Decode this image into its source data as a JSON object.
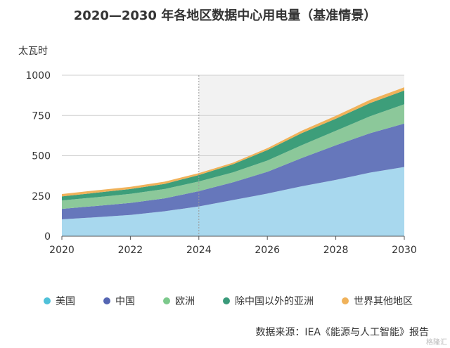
{
  "chart_data": {
    "type": "area",
    "title": "2020—2030 年各地区数据中心用电量（基准情景）",
    "ylabel": "太瓦时",
    "xlabel": "",
    "x": [
      2020,
      2021,
      2022,
      2023,
      2024,
      2025,
      2026,
      2027,
      2028,
      2029,
      2030
    ],
    "x_ticks": [
      "2020",
      "2022",
      "2024",
      "2026",
      "2028",
      "2030"
    ],
    "y_ticks": [
      "0",
      "250",
      "500",
      "750",
      "1000"
    ],
    "ylim": [
      0,
      1000
    ],
    "xlim": [
      2020,
      2030
    ],
    "grid": true,
    "stacked": true,
    "series": [
      {
        "name": "美国",
        "color": "#a8d8ee",
        "values": [
          105,
          118,
          132,
          155,
          185,
          225,
          265,
          310,
          350,
          395,
          430
        ]
      },
      {
        "name": "中国",
        "color": "#6677bb",
        "values": [
          65,
          70,
          75,
          80,
          95,
          110,
          135,
          175,
          215,
          245,
          270
        ]
      },
      {
        "name": "欧洲",
        "color": "#8cc89a",
        "values": [
          52,
          54,
          56,
          58,
          60,
          62,
          70,
          80,
          90,
          105,
          120
        ]
      },
      {
        "name": "除中国以外的亚洲",
        "color": "#3d9e7a",
        "values": [
          25,
          28,
          30,
          32,
          40,
          50,
          65,
          75,
          75,
          82,
          85
        ]
      },
      {
        "name": "世界其他地区",
        "color": "#f0b25a",
        "values": [
          15,
          15,
          14,
          14,
          12,
          10,
          12,
          15,
          18,
          20,
          20
        ]
      }
    ],
    "reference_line_x": 2024,
    "projection_start": 2024,
    "legend_position": "bottom"
  },
  "legend_dot_colors": [
    "#4fc1d9",
    "#5566b3",
    "#7cc98c",
    "#3a9a7a",
    "#f0b25a"
  ],
  "source_text": "数据来源：IEA《能源与人工智能》报告",
  "watermark_text": "格隆汇"
}
